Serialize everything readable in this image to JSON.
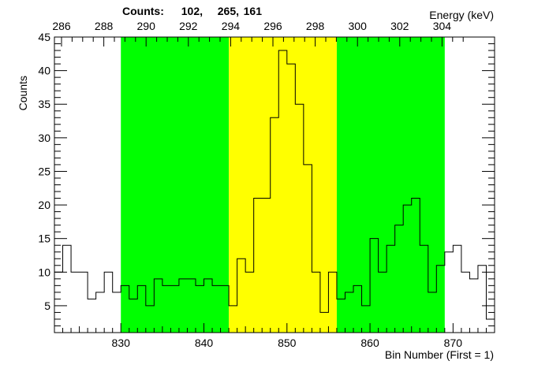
{
  "chart_data": {
    "type": "histogram",
    "title": "",
    "counts_label": "Counts:",
    "counts_values": [
      "102,",
      "265,",
      "161"
    ],
    "ylabel": "Counts",
    "xlabel": "Bin Number (First = 1)",
    "top_axis_label": "Energy (keV)",
    "ylim": [
      1,
      45
    ],
    "xlim": [
      822,
      875
    ],
    "y_ticks": [
      5,
      10,
      15,
      20,
      25,
      30,
      35,
      40,
      45
    ],
    "x_ticks": [
      830,
      840,
      850,
      860,
      870
    ],
    "energy_ticks": [
      "286",
      "288",
      "290",
      "292",
      "294",
      "296",
      "298",
      "300",
      "302",
      "304"
    ],
    "regions": [
      {
        "from": 830,
        "to": 843,
        "color": "#00ff00"
      },
      {
        "from": 843,
        "to": 856,
        "color": "#ffff00"
      },
      {
        "from": 856,
        "to": 869,
        "color": "#00ff00"
      }
    ],
    "bin_start": 822,
    "counts": [
      10,
      14,
      10,
      10,
      6,
      7,
      10,
      7,
      8,
      6,
      8,
      5,
      9,
      8,
      8,
      9,
      9,
      8,
      9,
      8,
      8,
      5,
      12,
      10,
      21,
      21,
      33,
      43,
      41,
      35,
      26,
      10,
      4,
      10,
      6,
      7,
      8,
      5,
      15,
      10,
      14,
      17,
      20,
      21,
      14,
      7,
      11,
      13,
      14,
      10,
      9,
      11,
      3
    ]
  }
}
